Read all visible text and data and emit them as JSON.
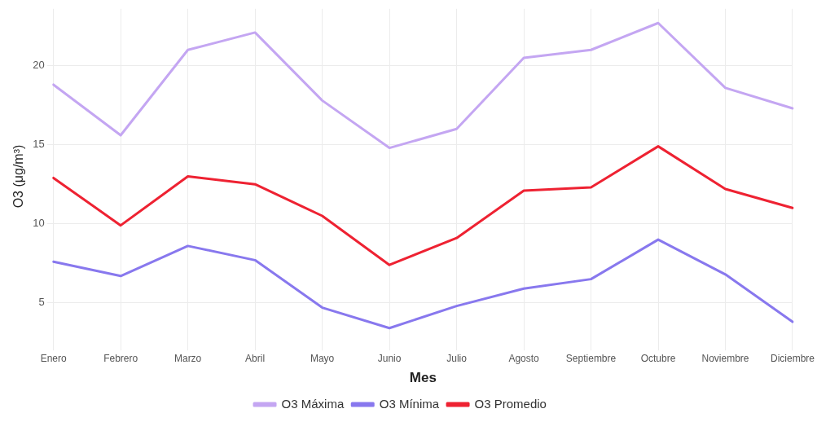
{
  "chart_data": {
    "type": "line",
    "xlabel": "Mes",
    "ylabel": "O3 (μg/m³)",
    "categories": [
      "Enero",
      "Febrero",
      "Marzo",
      "Abril",
      "Mayo",
      "Junio",
      "Julio",
      "Agosto",
      "Septiembre",
      "Octubre",
      "Noviembre",
      "Diciembre"
    ],
    "series": [
      {
        "name": "O3 Máxima",
        "color": "#c4a6f2",
        "values": [
          18.8,
          15.6,
          21.0,
          22.1,
          17.8,
          14.8,
          16.0,
          20.5,
          21.0,
          22.7,
          18.6,
          17.3
        ]
      },
      {
        "name": "O3 Mínima",
        "color": "#8878ee",
        "values": [
          7.6,
          6.7,
          8.6,
          7.7,
          4.7,
          3.4,
          4.8,
          5.9,
          6.5,
          9.0,
          6.8,
          3.8
        ]
      },
      {
        "name": "O3 Promedio",
        "color": "#ee2232",
        "values": [
          12.9,
          9.9,
          13.0,
          12.5,
          10.5,
          7.4,
          9.1,
          12.1,
          12.3,
          14.9,
          12.2,
          11.0
        ]
      }
    ],
    "ylim": [
      2.4,
      23.6
    ],
    "yticks": [
      5,
      10,
      15,
      20
    ],
    "grid": true,
    "legend": "bottom",
    "marker": "none",
    "line_style": "solid"
  }
}
